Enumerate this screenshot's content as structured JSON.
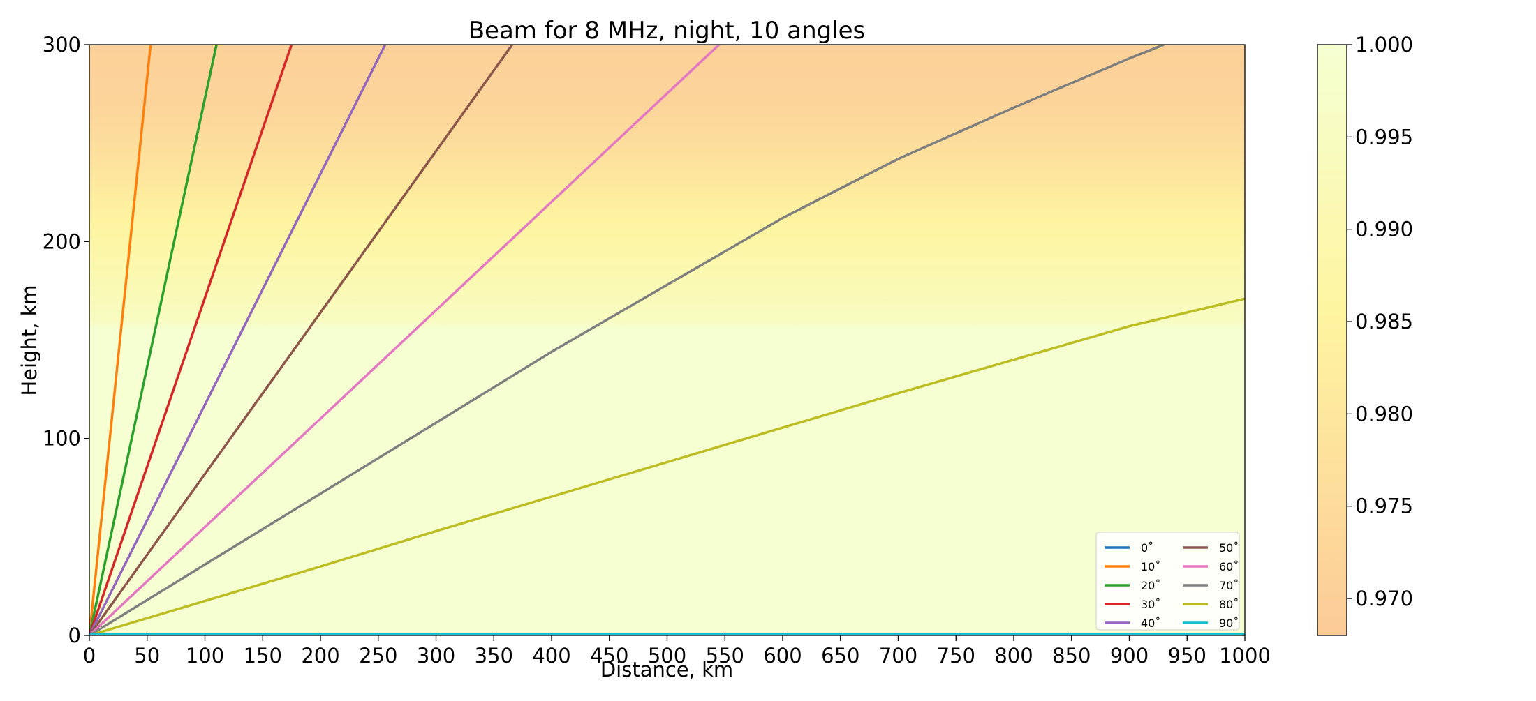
{
  "chart_data": {
    "type": "line",
    "title": "Beam for 8 MHz, night, 10 angles",
    "xlabel": "Distance, km",
    "ylabel": "Height, km",
    "xlim": [
      0,
      1000
    ],
    "ylim": [
      0,
      300
    ],
    "xticks": [
      0,
      50,
      100,
      150,
      200,
      250,
      300,
      350,
      400,
      450,
      500,
      550,
      600,
      650,
      700,
      750,
      800,
      850,
      900,
      950,
      1000
    ],
    "yticks": [
      0,
      100,
      200,
      300
    ],
    "grid": false,
    "legend_position": "lower-right",
    "legend_columns": 2,
    "series": [
      {
        "name": "0$^\\circ$",
        "label": "0˚",
        "color": "#1f77b4",
        "x": [
          0,
          1000
        ],
        "y": [
          0.3,
          0.3
        ]
      },
      {
        "name": "10$^\\circ$",
        "label": "10˚",
        "color": "#ff7f0e",
        "x": [
          0,
          53
        ],
        "y": [
          0,
          300
        ]
      },
      {
        "name": "20$^\\circ$",
        "label": "20˚",
        "color": "#2ca02c",
        "x": [
          0,
          110
        ],
        "y": [
          0,
          300
        ]
      },
      {
        "name": "30$^\\circ$",
        "label": "30˚",
        "color": "#d62728",
        "x": [
          0,
          175
        ],
        "y": [
          0,
          300
        ]
      },
      {
        "name": "40$^\\circ$",
        "label": "40˚",
        "color": "#9467bd",
        "x": [
          0,
          256
        ],
        "y": [
          0,
          300
        ]
      },
      {
        "name": "50$^\\circ$",
        "label": "50˚",
        "color": "#8c564b",
        "x": [
          0,
          366
        ],
        "y": [
          0,
          300
        ]
      },
      {
        "name": "60$^\\circ$",
        "label": "60˚",
        "color": "#e377c2",
        "x": [
          0,
          545
        ],
        "y": [
          0,
          300
        ]
      },
      {
        "name": "70$^\\circ$",
        "label": "70˚",
        "color": "#7f7f7f",
        "x": [
          0,
          100,
          200,
          300,
          400,
          500,
          600,
          700,
          800,
          900,
          930
        ],
        "y": [
          0,
          36,
          72,
          108,
          144,
          178,
          212,
          242,
          268,
          293,
          300
        ]
      },
      {
        "name": "80$^\\circ$",
        "label": "80˚",
        "color": "#bcbd22",
        "x": [
          0,
          100,
          200,
          300,
          400,
          500,
          600,
          700,
          800,
          900,
          1000
        ],
        "y": [
          0,
          17.5,
          35,
          53,
          70.5,
          88,
          105.5,
          123,
          140,
          157,
          171
        ]
      },
      {
        "name": "90$^\\circ$",
        "label": "90˚",
        "color": "#17becf",
        "x": [
          0,
          1000
        ],
        "y": [
          0.6,
          0.6
        ]
      }
    ],
    "background_field": {
      "colormap": "YlOrBr reversed (light yellow = high, orange = low)",
      "height_profile": [
        {
          "height": 0,
          "value": 1.0
        },
        {
          "height": 155,
          "value": 1.0
        },
        {
          "height": 160,
          "value": 0.995
        },
        {
          "height": 185,
          "value": 0.99
        },
        {
          "height": 210,
          "value": 0.985
        },
        {
          "height": 240,
          "value": 0.978
        },
        {
          "height": 270,
          "value": 0.972
        },
        {
          "height": 300,
          "value": 0.971
        }
      ]
    },
    "colorbar": {
      "min": 0.968,
      "max": 1.0,
      "ticks": [
        1.0,
        0.995,
        0.99,
        0.985,
        0.98,
        0.975,
        0.97
      ],
      "tick_labels": [
        "1.000",
        "0.995",
        "0.990",
        "0.985",
        "0.980",
        "0.975",
        "0.970"
      ],
      "color_low": "#fcca98",
      "color_mid": "#fef5a0",
      "color_high": "#f5ffd2"
    }
  }
}
